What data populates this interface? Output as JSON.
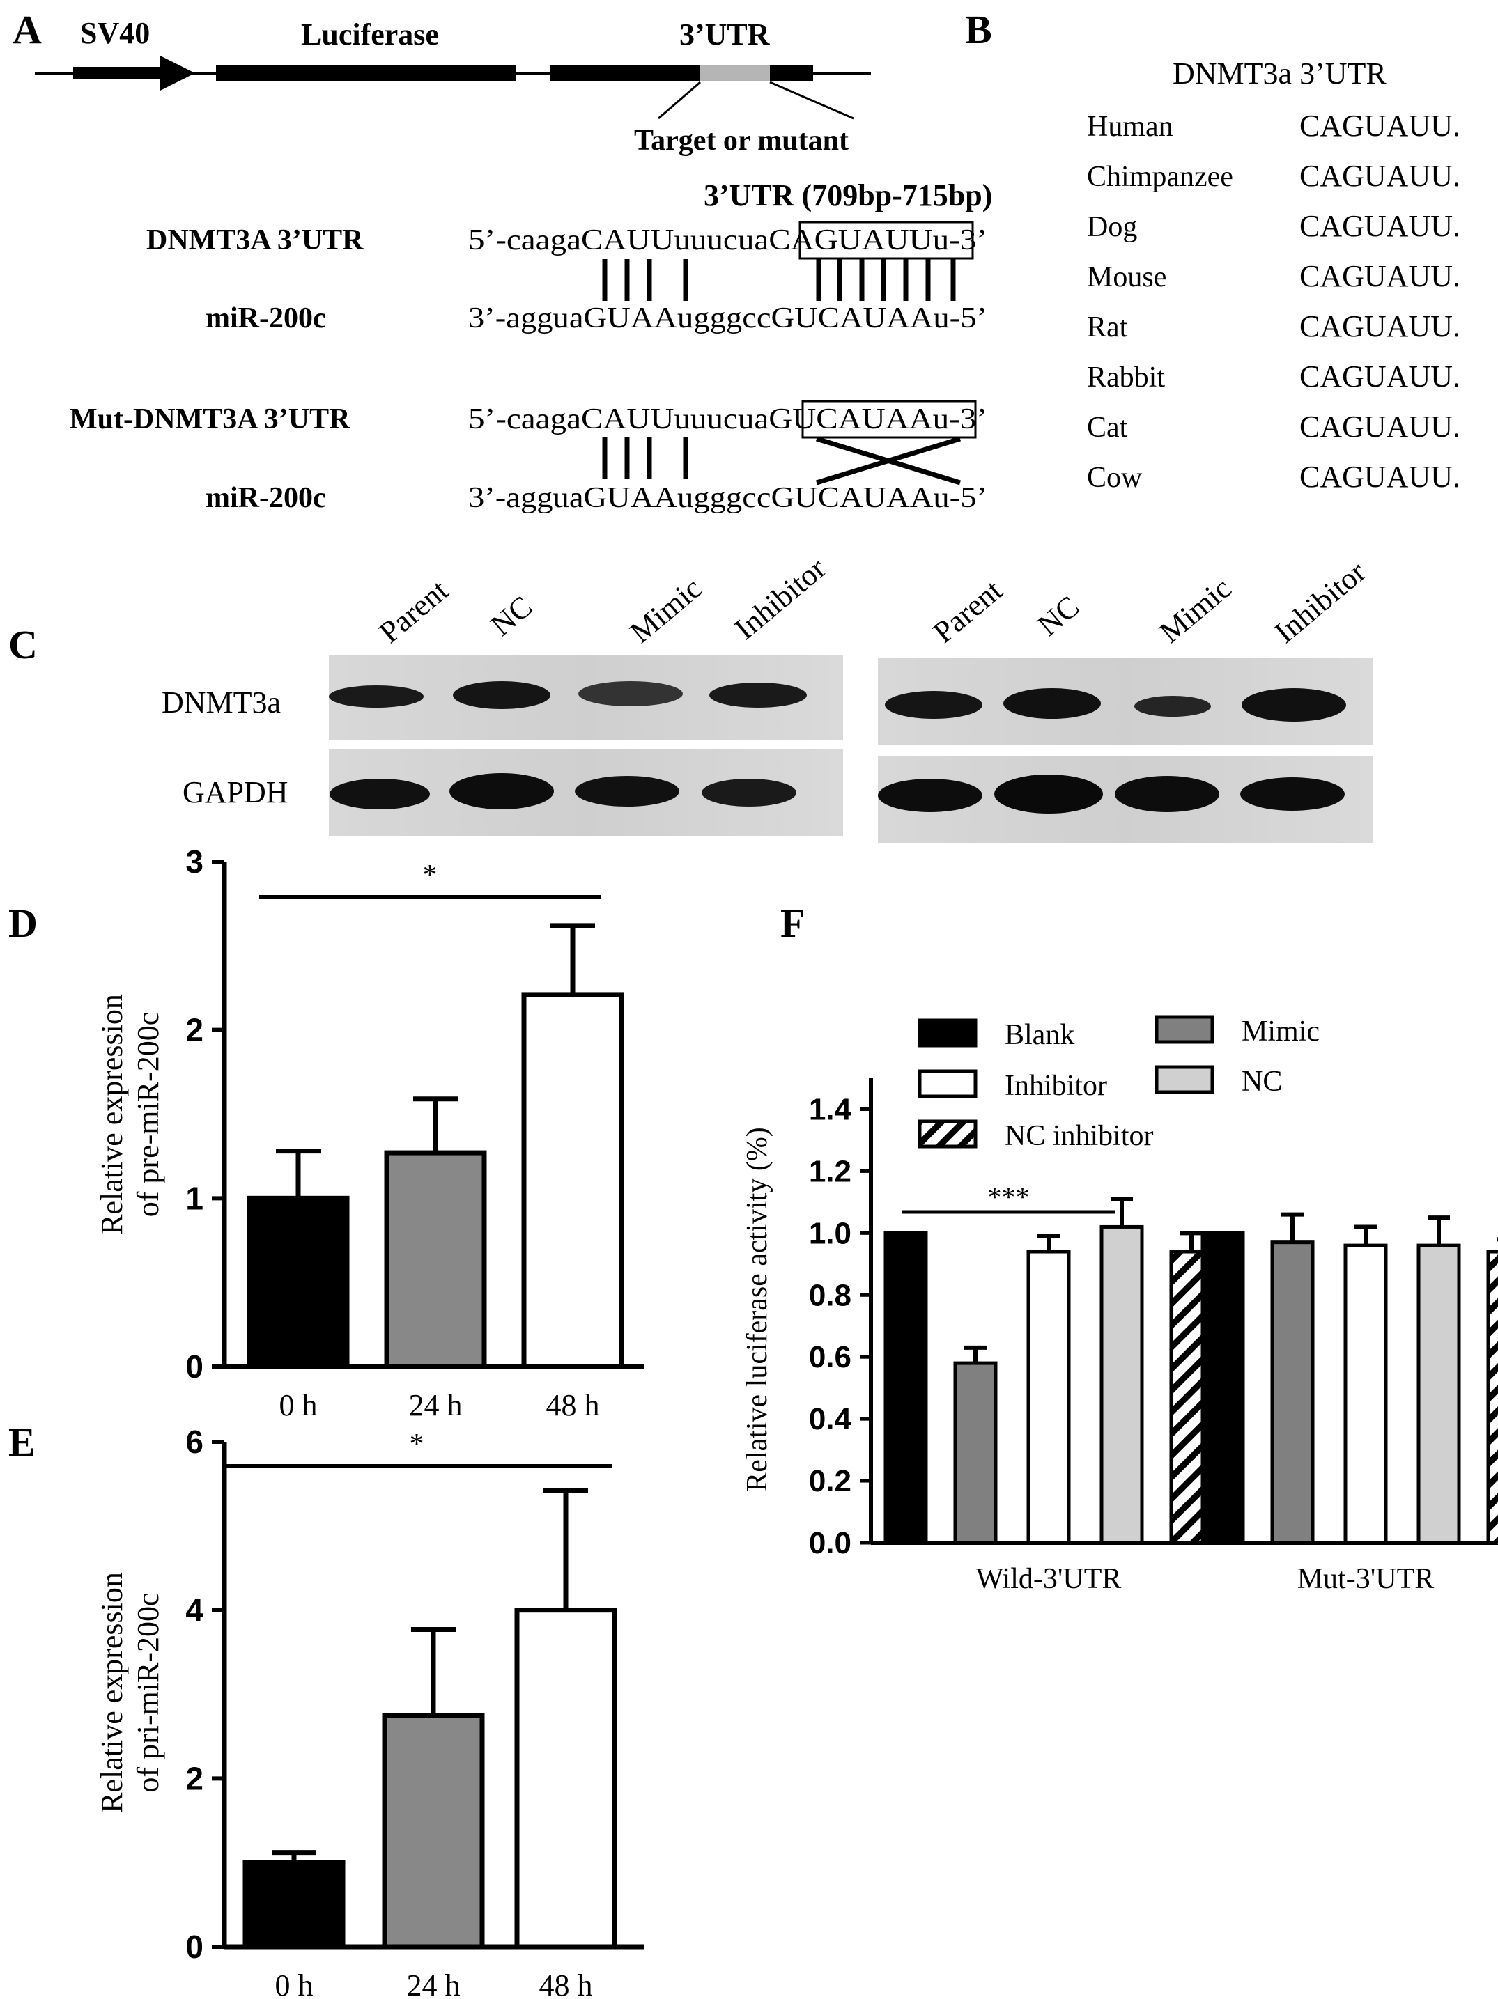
{
  "panels": {
    "A": "A",
    "B": "B",
    "C": "C",
    "D": "D",
    "E": "E",
    "F": "F"
  },
  "panel_a": {
    "sv40": "SV40",
    "luciferase": "Luciferase",
    "utr": "3’UTR",
    "target": "Target or mutant",
    "utr_range": "3’UTR (709bp-715bp)",
    "rows": [
      {
        "label": "DNMT3A 3’UTR",
        "seq": "5’-caagaCAUUuuucuaCAGUAUUu-3’"
      },
      {
        "label": "miR-200c",
        "seq": "3’-agguaGUAAugggccGUCAUAAu-5’"
      },
      {
        "label": "Mut-DNMT3A 3’UTR",
        "seq": "5’-caagaCAUUuuucuaGUCAUAAu-3’"
      },
      {
        "label": "miR-200c",
        "seq": "3’-agguaGUAAugggccGUCAUAAu-5’"
      }
    ]
  },
  "panel_b": {
    "header": "DNMT3a 3’UTR",
    "species": [
      {
        "name": "Human",
        "seq": "CAGUAUU."
      },
      {
        "name": "Chimpanzee",
        "seq": "CAGUAUU."
      },
      {
        "name": "Dog",
        "seq": "CAGUAUU."
      },
      {
        "name": "Mouse",
        "seq": "CAGUAUU."
      },
      {
        "name": "Rat",
        "seq": "CAGUAUU."
      },
      {
        "name": "Rabbit",
        "seq": "CAGUAUU."
      },
      {
        "name": "Cat",
        "seq": "CAGUAUU."
      },
      {
        "name": "Cow",
        "seq": "CAGUAUU."
      }
    ]
  },
  "panel_c": {
    "lanes_left": [
      "Parent",
      "NC",
      "Mimic",
      "Inhibitor"
    ],
    "lanes_right": [
      "Parent",
      "NC",
      "Mimic",
      "Inhibitor"
    ],
    "row_labels": [
      "DNMT3a",
      "GAPDH"
    ]
  },
  "chart_data": [
    {
      "type": "bar",
      "id": "D",
      "ylabel_lines": [
        "Relative expression",
        "of pre-miR-200c"
      ],
      "categories": [
        "0 h",
        "24 h",
        "48 h"
      ],
      "values": [
        1.0,
        1.27,
        2.21
      ],
      "errors": [
        0.28,
        0.32,
        0.41
      ],
      "colors": [
        "#000000",
        "#888888",
        "#ffffff"
      ],
      "ylim": [
        0,
        3
      ],
      "yticks": [
        "0",
        "1",
        "2",
        "3"
      ],
      "significance": "*"
    },
    {
      "type": "bar",
      "id": "E",
      "ylabel_lines": [
        "Relative expression",
        "of pri-miR-200c"
      ],
      "categories": [
        "0 h",
        "24 h",
        "48 h"
      ],
      "values": [
        1.0,
        2.75,
        4.0
      ],
      "errors": [
        0.12,
        1.02,
        1.42
      ],
      "colors": [
        "#000000",
        "#888888",
        "#ffffff"
      ],
      "ylim": [
        0,
        6
      ],
      "yticks": [
        "0",
        "2",
        "4",
        "6"
      ],
      "significance": "*"
    },
    {
      "type": "bar",
      "id": "F",
      "ylabel": "Relative luciferase activity (%)",
      "categories": [
        "Wild-3'UTR",
        "Mut-3'UTR"
      ],
      "series": [
        {
          "name": "Blank",
          "values": [
            1.0,
            1.0
          ],
          "errors": [
            0,
            0
          ],
          "fill": "#000000"
        },
        {
          "name": "Mimic",
          "values": [
            0.58,
            0.97
          ],
          "errors": [
            0.05,
            0.09
          ],
          "fill": "#808080"
        },
        {
          "name": "Inhibitor",
          "values": [
            0.94,
            0.96
          ],
          "errors": [
            0.05,
            0.06
          ],
          "fill": "#ffffff"
        },
        {
          "name": "NC",
          "values": [
            1.02,
            0.96
          ],
          "errors": [
            0.09,
            0.09
          ],
          "fill": "#d0d0d0"
        },
        {
          "name": "NC inhibitor",
          "values": [
            0.94,
            0.94
          ],
          "errors": [
            0.06,
            0.04
          ],
          "fill": "hatch"
        }
      ],
      "ylim": [
        0,
        1.5
      ],
      "yticks": [
        "0.0",
        "0.2",
        "0.4",
        "0.6",
        "0.8",
        "1.0",
        "1.2",
        "1.4"
      ],
      "significance": "***"
    }
  ]
}
